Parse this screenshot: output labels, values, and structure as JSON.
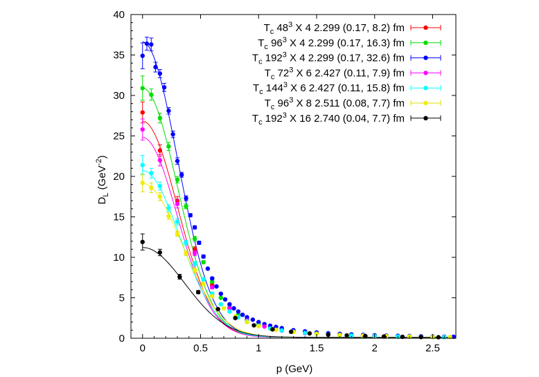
{
  "chart_data": {
    "type": "scatter",
    "xlabel": "p (GeV)",
    "ylabel": "D",
    "ylabel_sub": "L",
    "ylabel_unit_open": " (GeV",
    "ylabel_unit_sup": "-2",
    "ylabel_unit_close": ")",
    "xlim": [
      -0.1,
      2.7
    ],
    "ylim": [
      0,
      40
    ],
    "xticks": [
      0,
      0.5,
      1,
      1.5,
      2,
      2.5
    ],
    "xtick_labels": [
      "0",
      "0.5",
      "1",
      "1.5",
      "2",
      "2.5"
    ],
    "yticks": [
      0,
      5,
      10,
      15,
      20,
      25,
      30,
      35,
      40
    ],
    "ytick_labels": [
      "0",
      "5",
      "10",
      "15",
      "20",
      "25",
      "30",
      "35",
      "40"
    ],
    "grid": false,
    "legend_position": "top-right",
    "series": [
      {
        "name": "Tc 48^3 X 4 2.299 (0.17, 8.2) fm",
        "label": {
          "t": "T",
          "tsub": "c",
          "lat": "48",
          "latexp": "3",
          "rest": " X 4   2.299   (0.17, 8.2) fm"
        },
        "color": "#ff0000",
        "x": [
          0,
          0.15,
          0.3,
          0.45,
          0.6,
          0.75,
          0.9,
          1.05,
          1.2,
          1.4,
          1.6,
          1.8,
          2.0,
          2.2,
          2.4,
          2.6
        ],
        "y": [
          27.9,
          23.2,
          17.0,
          11.0,
          6.6,
          3.8,
          2.3,
          1.5,
          1.0,
          0.65,
          0.45,
          0.35,
          0.27,
          0.22,
          0.18,
          0.15
        ],
        "err": [
          1.3,
          0.7,
          0.5,
          0.3,
          0.2,
          0.1,
          0.1,
          0.05,
          0.05,
          0.03,
          0.03,
          0.02,
          0.02,
          0.02,
          0.02,
          0.02
        ],
        "fit_amp": 26.7,
        "fit_sigma": 0.3
      },
      {
        "name": "Tc 96^3 X 4 2.299 (0.17, 16.3) fm",
        "label": {
          "t": "T",
          "tsub": "c",
          "lat": "96",
          "latexp": "3",
          "rest": " X 4   2.299   (0.17, 16.3) fm"
        },
        "color": "#00dd00",
        "x": [
          0,
          0.075,
          0.15,
          0.225,
          0.3,
          0.375,
          0.45,
          0.525,
          0.6,
          0.675,
          0.75,
          0.825,
          0.9,
          1.0,
          1.1,
          1.2,
          1.3,
          1.4,
          1.5,
          1.6,
          1.7,
          1.8,
          1.9,
          2.0,
          2.1,
          2.2,
          2.3,
          2.4,
          2.5,
          2.6
        ],
        "y": [
          30.9,
          30.1,
          27.2,
          23.7,
          19.6,
          16.3,
          12.3,
          9.4,
          7.0,
          5.0,
          3.8,
          2.9,
          2.3,
          1.7,
          1.3,
          1.05,
          0.85,
          0.7,
          0.6,
          0.5,
          0.42,
          0.37,
          0.32,
          0.28,
          0.25,
          0.22,
          0.2,
          0.18,
          0.16,
          0.15
        ],
        "err": [
          1.5,
          0.7,
          0.6,
          0.5,
          0.4,
          0.3,
          0.3,
          0.2,
          0.2,
          0.1,
          0.1,
          0.1,
          0.05,
          0.05,
          0.05,
          0.03,
          0.03,
          0.03,
          0.02,
          0.02,
          0.02,
          0.02,
          0.02,
          0.02,
          0.02,
          0.02,
          0.02,
          0.02,
          0.02,
          0.02
        ],
        "fit_amp": 30.8,
        "fit_sigma": 0.3
      },
      {
        "name": "Tc 192^3 X 4 2.299 (0.17, 32.6) fm",
        "label": {
          "t": "T",
          "tsub": "c",
          "lat": "192",
          "latexp": "3",
          "rest": " X 4   2.299   (0.17, 32.6) fm"
        },
        "color": "#0000ff",
        "x": [
          0,
          0.037,
          0.075,
          0.112,
          0.15,
          0.187,
          0.225,
          0.262,
          0.3,
          0.337,
          0.375,
          0.412,
          0.45,
          0.487,
          0.525,
          0.562,
          0.6,
          0.637,
          0.675,
          0.712,
          0.75,
          0.787,
          0.825,
          0.862,
          0.9,
          0.95,
          1.0,
          1.05,
          1.1,
          1.15,
          1.2,
          1.3,
          1.4,
          1.5,
          1.6,
          1.7,
          1.8,
          1.9,
          2.0,
          2.1,
          2.2,
          2.3,
          2.4,
          2.5,
          2.6,
          2.68
        ],
        "y": [
          34.9,
          36.4,
          36.3,
          33.5,
          32.7,
          31.0,
          28.1,
          25.2,
          21.9,
          20.2,
          17.3,
          15.2,
          13.7,
          11.8,
          10.1,
          8.6,
          7.4,
          6.4,
          5.5,
          4.8,
          4.2,
          3.7,
          3.3,
          2.9,
          2.6,
          2.3,
          2.0,
          1.75,
          1.55,
          1.4,
          1.25,
          1.0,
          0.85,
          0.72,
          0.62,
          0.54,
          0.47,
          0.42,
          0.37,
          0.33,
          0.3,
          0.27,
          0.24,
          0.22,
          0.2,
          0.19
        ],
        "err": [
          1.6,
          0.8,
          0.8,
          0.6,
          0.5,
          0.5,
          0.4,
          0.4,
          0.4,
          0.3,
          0.3,
          0.2,
          0.2,
          0.2,
          0.2,
          0.1,
          0.1,
          0.1,
          0.1,
          0.1,
          0.1,
          0.05,
          0.05,
          0.05,
          0.05,
          0.05,
          0.05,
          0.03,
          0.03,
          0.03,
          0.03,
          0.03,
          0.02,
          0.02,
          0.02,
          0.02,
          0.02,
          0.02,
          0.02,
          0.02,
          0.02,
          0.02,
          0.02,
          0.02,
          0.02,
          0.02
        ],
        "fit_amp": 36.5,
        "fit_sigma": 0.3
      },
      {
        "name": "Tc 72^3 X 6 2.427 (0.11, 7.9) fm",
        "label": {
          "t": "T",
          "tsub": "c",
          "lat": "72",
          "latexp": "3",
          "rest": " X 6   2.427   (0.11, 7.9) fm"
        },
        "color": "#ff00ff",
        "x": [
          0,
          0.15,
          0.3,
          0.45,
          0.6,
          0.75,
          0.9,
          1.05,
          1.2,
          1.4,
          1.6,
          1.8,
          2.0,
          2.2,
          2.4,
          2.6
        ],
        "y": [
          25.8,
          22.0,
          16.6,
          10.5,
          6.3,
          3.7,
          2.2,
          1.45,
          0.95,
          0.62,
          0.43,
          0.33,
          0.26,
          0.21,
          0.17,
          0.14
        ],
        "err": [
          1.3,
          0.7,
          0.5,
          0.3,
          0.2,
          0.1,
          0.1,
          0.05,
          0.05,
          0.03,
          0.03,
          0.02,
          0.02,
          0.02,
          0.02,
          0.02
        ],
        "fit_amp": 24.7,
        "fit_sigma": 0.3
      },
      {
        "name": "Tc 144^3 X 6 2.427 (0.11, 15.8) fm",
        "label": {
          "t": "T",
          "tsub": "c",
          "lat": "144",
          "latexp": "3",
          "rest": " X 6   2.427   (0.11, 15.8) fm"
        },
        "color": "#00ffff",
        "x": [
          0,
          0.075,
          0.15,
          0.225,
          0.3,
          0.375,
          0.45,
          0.525,
          0.6,
          0.675,
          0.75,
          0.825,
          0.9,
          1.0,
          1.1,
          1.2,
          1.3,
          1.4,
          1.5,
          1.6,
          1.7,
          1.8,
          1.9,
          2.0,
          2.1,
          2.2,
          2.3,
          2.4,
          2.5,
          2.6
        ],
        "y": [
          21.4,
          20.4,
          18.8,
          16.1,
          14.4,
          11.8,
          9.2,
          7.3,
          5.5,
          4.2,
          3.3,
          2.6,
          2.1,
          1.55,
          1.2,
          0.97,
          0.8,
          0.66,
          0.56,
          0.47,
          0.4,
          0.35,
          0.3,
          0.27,
          0.24,
          0.21,
          0.19,
          0.17,
          0.16,
          0.14
        ],
        "err": [
          1.2,
          0.6,
          0.5,
          0.4,
          0.4,
          0.3,
          0.3,
          0.2,
          0.2,
          0.1,
          0.1,
          0.1,
          0.05,
          0.05,
          0.05,
          0.03,
          0.03,
          0.03,
          0.02,
          0.02,
          0.02,
          0.02,
          0.02,
          0.02,
          0.02,
          0.02,
          0.02,
          0.02,
          0.02,
          0.02
        ],
        "fit_amp": 20.6,
        "fit_sigma": 0.32
      },
      {
        "name": "Tc 96^3 X 8 2.511 (0.08, 7.7) fm",
        "label": {
          "t": "T",
          "tsub": "c",
          "lat": "96",
          "latexp": "3",
          "rest": " X 8   2.511   (0.08, 7.7) fm"
        },
        "color": "#eeee00",
        "x": [
          0,
          0.075,
          0.15,
          0.225,
          0.3,
          0.375,
          0.45,
          0.525,
          0.6,
          0.7,
          0.8,
          0.9,
          1.0,
          1.15,
          1.3,
          1.5,
          1.7,
          1.9,
          2.1,
          2.3,
          2.5,
          2.65
        ],
        "y": [
          19.2,
          18.6,
          17.5,
          15.1,
          12.9,
          10.5,
          8.4,
          6.7,
          5.2,
          3.7,
          2.7,
          2.0,
          1.5,
          1.05,
          0.78,
          0.55,
          0.41,
          0.32,
          0.26,
          0.21,
          0.17,
          0.15
        ],
        "err": [
          1.1,
          0.6,
          0.5,
          0.4,
          0.3,
          0.3,
          0.2,
          0.2,
          0.1,
          0.1,
          0.1,
          0.05,
          0.05,
          0.03,
          0.03,
          0.02,
          0.02,
          0.02,
          0.02,
          0.02,
          0.02,
          0.02
        ],
        "fit_amp": 19.0,
        "fit_sigma": 0.34
      },
      {
        "name": "Tc 192^3 X 16 2.740 (0.04, 7.7) fm",
        "label": {
          "t": "T",
          "tsub": "c",
          "lat": "192",
          "latexp": "3",
          "rest": " X 16   2.740   (0.04, 7.7) fm"
        },
        "color": "#000000",
        "x": [
          0,
          0.15,
          0.32,
          0.48,
          0.65,
          0.8,
          0.96,
          1.12,
          1.28,
          1.44,
          1.6,
          1.76,
          1.92,
          2.08,
          2.24,
          2.4,
          2.55
        ],
        "y": [
          11.9,
          10.6,
          7.6,
          5.7,
          3.6,
          2.5,
          1.6,
          1.1,
          0.8,
          0.6,
          0.45,
          0.35,
          0.28,
          0.22,
          0.18,
          0.15,
          0.13
        ],
        "err": [
          1.0,
          0.4,
          0.3,
          0.2,
          0.1,
          0.1,
          0.05,
          0.05,
          0.03,
          0.03,
          0.02,
          0.02,
          0.02,
          0.02,
          0.02,
          0.02,
          0.02
        ],
        "fit_amp": 11.1,
        "fit_sigma": 0.36
      }
    ]
  }
}
